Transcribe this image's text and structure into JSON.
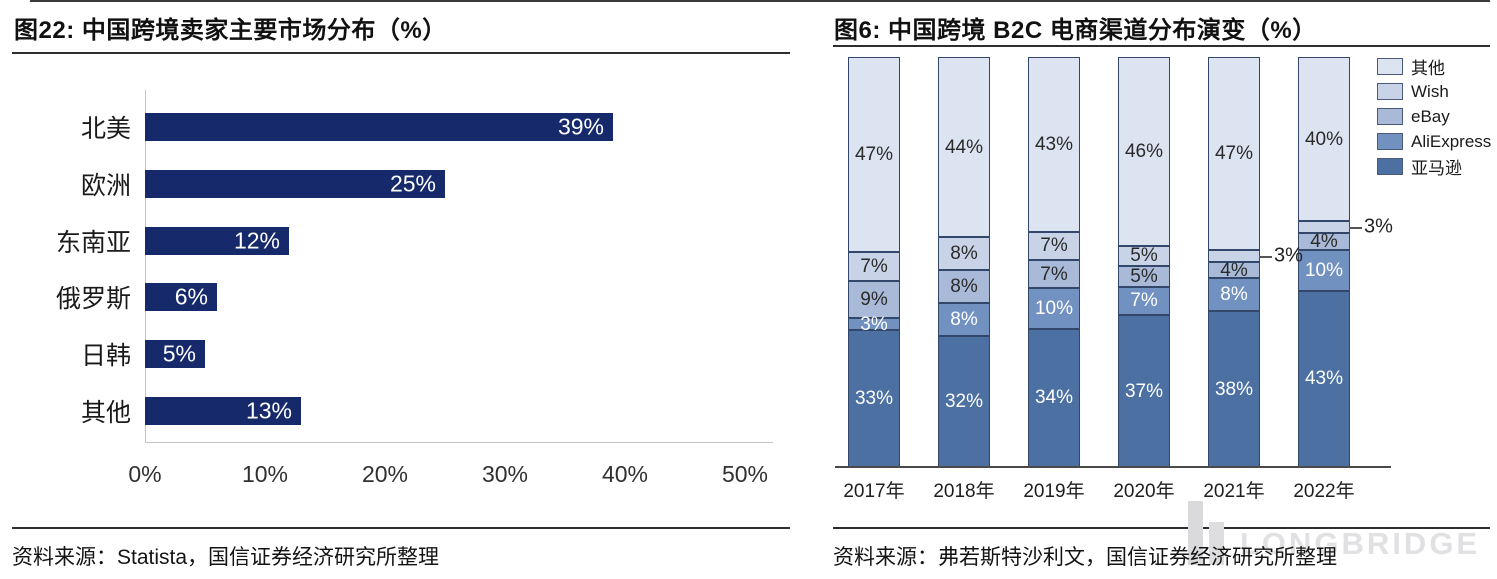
{
  "left_panel": {
    "title": "图22: 中国跨境卖家主要市场分布（%）",
    "source": "资料来源：Statista，国信证券经济研究所整理"
  },
  "right_panel": {
    "title": "图6: 中国跨境 B2C 电商渠道分布演变（%）",
    "source": "资料来源：弗若斯特沙利文，国信证券经济研究所整理"
  },
  "watermark": {
    "text": "LONGBRIDGE"
  },
  "colors": {
    "left_bar": "#16296b",
    "segment_border": "#33476b"
  },
  "chart_data": [
    {
      "type": "bar",
      "orientation": "horizontal",
      "title": "图22: 中国跨境卖家主要市场分布（%）",
      "categories": [
        "北美",
        "欧洲",
        "东南亚",
        "俄罗斯",
        "日韩",
        "其他"
      ],
      "values": [
        39,
        25,
        12,
        6,
        5,
        13
      ],
      "value_labels": [
        "39%",
        "25%",
        "12%",
        "6%",
        "5%",
        "13%"
      ],
      "x_ticks": [
        "0%",
        "10%",
        "20%",
        "30%",
        "40%",
        "50%"
      ],
      "xlim": [
        0,
        50
      ],
      "grid": false,
      "bar_color": "#16296b"
    },
    {
      "type": "bar",
      "stacked": true,
      "title": "图6: 中国跨境 B2C 电商渠道分布演变（%）",
      "categories": [
        "2017年",
        "2018年",
        "2019年",
        "2020年",
        "2021年",
        "2022年"
      ],
      "series": [
        {
          "name": "亚马逊",
          "color": "#4c70a2",
          "text": "light",
          "values": [
            33,
            32,
            34,
            37,
            38,
            43
          ]
        },
        {
          "name": "AliExpress",
          "color": "#7191c1",
          "text": "light",
          "values": [
            3,
            8,
            10,
            7,
            8,
            10
          ]
        },
        {
          "name": "eBay",
          "color": "#a8bad8",
          "text": "dark",
          "values": [
            9,
            8,
            7,
            5,
            4,
            4
          ]
        },
        {
          "name": "Wish",
          "color": "#c9d3e8",
          "text": "dark",
          "values": [
            7,
            8,
            7,
            5,
            3,
            3
          ]
        },
        {
          "name": "其他",
          "color": "#dde4f1",
          "text": "dark",
          "values": [
            47,
            44,
            43,
            46,
            47,
            40
          ]
        }
      ],
      "legend": [
        "其他",
        "Wish",
        "eBay",
        "AliExpress",
        "亚马逊"
      ],
      "legend_position": "right",
      "ylim": [
        0,
        100
      ],
      "grid": false,
      "outside_labels": [
        {
          "category": "2021年",
          "series": "Wish"
        },
        {
          "category": "2022年",
          "series": "Wish"
        }
      ]
    }
  ]
}
